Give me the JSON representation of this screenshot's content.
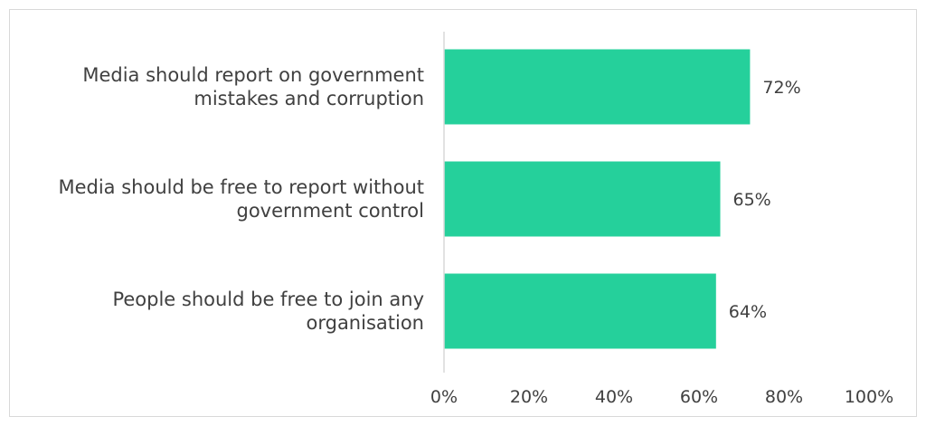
{
  "chart_data": {
    "type": "bar",
    "orientation": "horizontal",
    "categories": [
      [
        "Media should report on government",
        "mistakes and corruption"
      ],
      [
        "Media should be free to report without",
        "government control"
      ],
      [
        "People should be free to join any",
        "organisation"
      ]
    ],
    "values": [
      72,
      65,
      64
    ],
    "value_labels": [
      "72%",
      "65%",
      "64%"
    ],
    "xlim": [
      0,
      100
    ],
    "x_ticks": [
      0,
      20,
      40,
      60,
      80,
      100
    ],
    "x_tick_labels": [
      "0%",
      "20%",
      "40%",
      "60%",
      "80%",
      "100%"
    ],
    "title": "",
    "xlabel": "",
    "ylabel": "",
    "grid": false,
    "legend": "none",
    "bar_color": "#25d09b",
    "axis_color": "#d9d9d9",
    "text_color": "#404040"
  }
}
